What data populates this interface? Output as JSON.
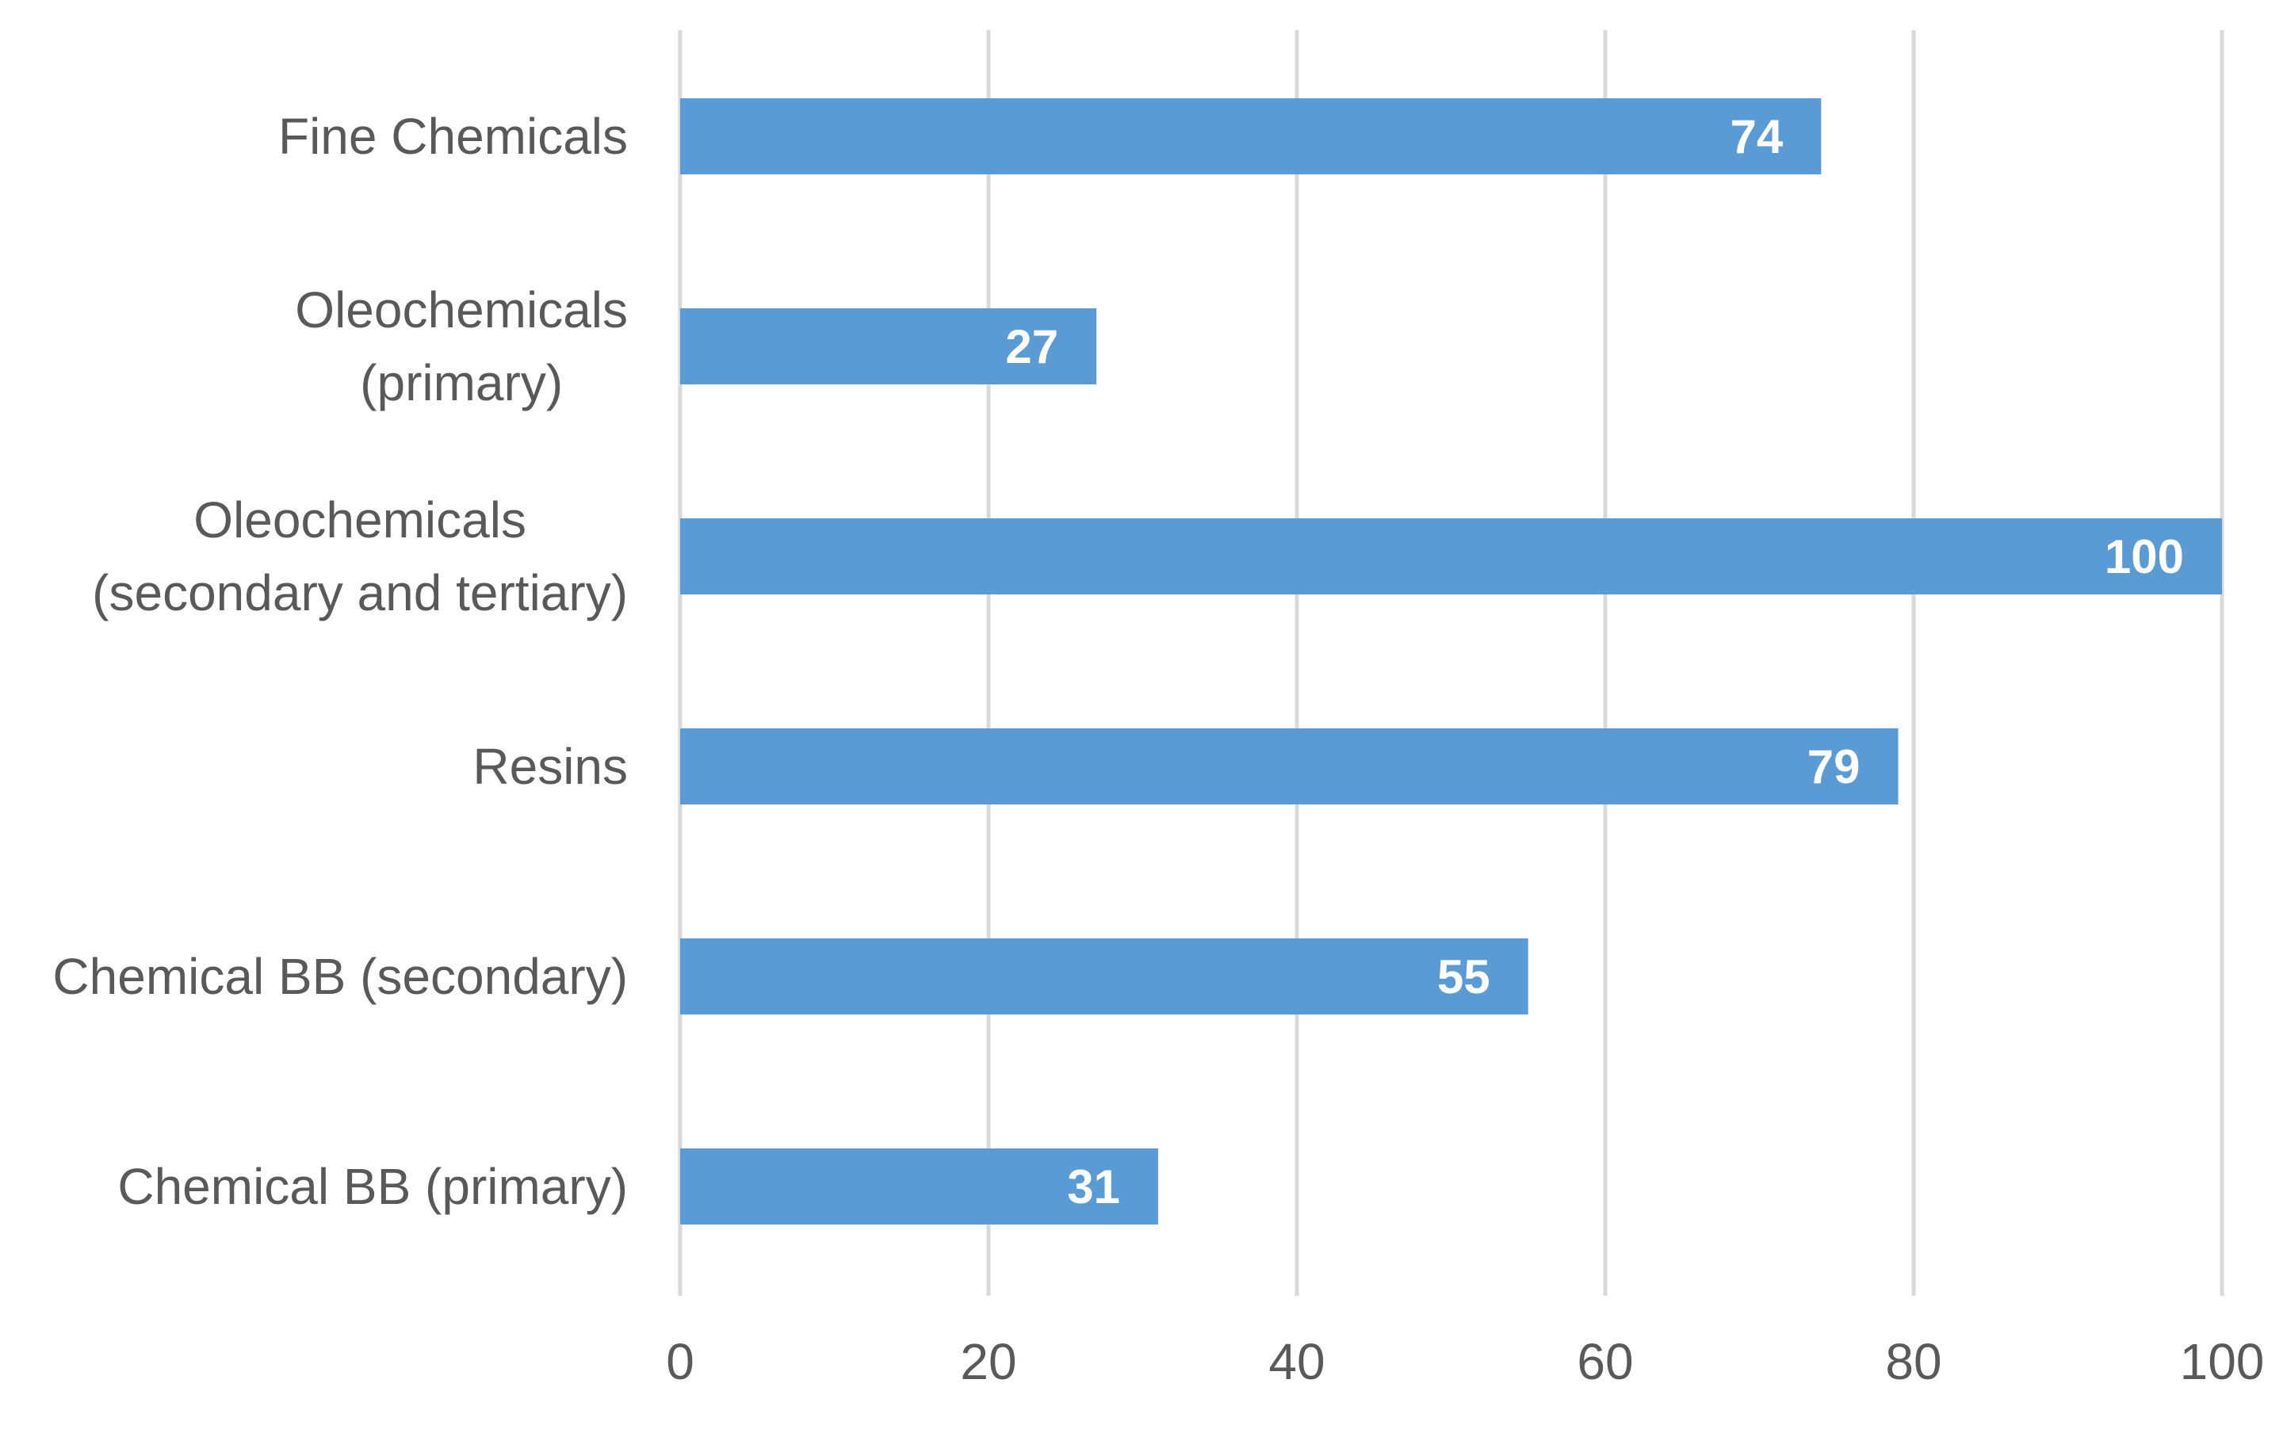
{
  "chart_data": {
    "type": "bar",
    "orientation": "horizontal",
    "categories": [
      [
        "Fine Chemicals"
      ],
      [
        "Oleochemicals",
        "(primary)"
      ],
      [
        "Oleochemicals",
        "(secondary and tertiary)"
      ],
      [
        "Resins"
      ],
      [
        "Chemical BB (secondary)"
      ],
      [
        "Chemical BB (primary)"
      ]
    ],
    "values": [
      74,
      27,
      100,
      79,
      55,
      31
    ],
    "data_labels": [
      "74",
      "27",
      "100",
      "79",
      "55",
      "31"
    ],
    "xlim": [
      0,
      100
    ],
    "x_ticks": [
      0,
      20,
      40,
      60,
      80,
      100
    ],
    "x_tick_labels": [
      "0",
      "20",
      "40",
      "60",
      "80",
      "100"
    ],
    "grid": "vertical",
    "legend": "none",
    "title": "",
    "xlabel": "",
    "ylabel": "",
    "colors": {
      "bar": "#5b9bd5",
      "grid": "#d9d9d9",
      "text": "#595959",
      "data_label": "#ffffff"
    }
  }
}
